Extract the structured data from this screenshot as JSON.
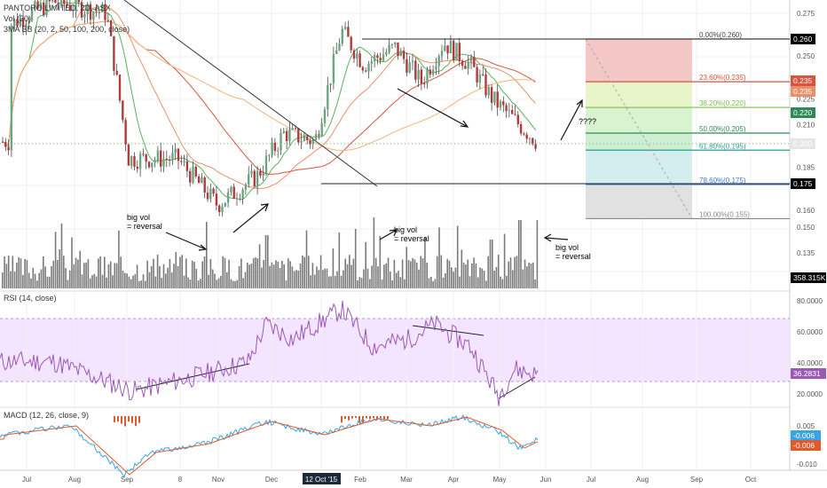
{
  "legend": {
    "symbol": "PANTORO LIMITED, 2D, ASX",
    "vol": "Vol (20)",
    "bb": "3MA BB (20, 2, 50, 100, 200, close)",
    "rsi": "RSI (14, close)",
    "macd": "MACD (12, 26, close, 9)"
  },
  "colors": {
    "up": "#6ba583",
    "down": "#b33b3b",
    "ma20": "#5bb15b",
    "ma50": "#e8906a",
    "ma100": "#d9533f",
    "ma200": "#f7b27a",
    "rsi_line": "#9b59b6",
    "rsi_band": "#f3e5ff",
    "macd_line": "#3aa3e3",
    "signal_line": "#e05a2b",
    "hist_neg": "#e05a2b",
    "hist_pos": "#3aa3e3",
    "vol_bar": "#7a7a7a"
  },
  "chart_data": [
    {
      "type": "candlestick",
      "name": "price",
      "xlabel": "",
      "ylabel": "",
      "ylim": [
        0.125,
        0.28
      ],
      "y_ticks": [
        0.275,
        0.25,
        0.225,
        0.21,
        0.185,
        0.16,
        0.15,
        0.135
      ],
      "x_ticks": [
        "Jul",
        "Aug",
        "Sep",
        "8",
        "Nov",
        "Dec",
        "12 Oct '15",
        "Feb",
        "Mar",
        "Apr",
        "May",
        "Jun",
        "Jul",
        "Aug",
        "Sep",
        "Oct"
      ],
      "highlighted_x_tick": "12 Oct '15",
      "price_tags": [
        {
          "value": "0.260",
          "bg": "#000000"
        },
        {
          "value": "0.235",
          "bg": "#d9533f"
        },
        {
          "value": "0.235",
          "bg": "#e8906a"
        },
        {
          "value": "0.220",
          "bg": "#2e8b57"
        },
        {
          "value": "0.200",
          "bg": "#e6e6e6",
          "fg": "#333333"
        },
        {
          "value": "0.175",
          "bg": "#000000"
        },
        {
          "value": "358.315K",
          "bg": "#000000"
        }
      ],
      "fibonacci": [
        {
          "label": "0.00%(0.260)",
          "value": 0.26
        },
        {
          "label": "23.60%(0.235)",
          "value": 0.235
        },
        {
          "label": "38.20%(0.220)",
          "value": 0.22
        },
        {
          "label": "50.00%(0.205)",
          "value": 0.205
        },
        {
          "label": "61.80%(0.195)",
          "value": 0.195
        },
        {
          "label": "78.60%(0.175)",
          "value": 0.175
        },
        {
          "label": "100.00%(0.155)",
          "value": 0.155
        }
      ],
      "annotations": [
        "big vol\n= reversal",
        "big vol\n= reversal",
        "big vol\n= reversal",
        "????"
      ]
    },
    {
      "type": "line",
      "name": "RSI",
      "ylim": [
        15,
        85
      ],
      "y_ticks": [
        "80.0000",
        "60.0000",
        "40.0000",
        "20.0000"
      ],
      "band": [
        30,
        70
      ],
      "last_value": "36.2831"
    },
    {
      "type": "line",
      "name": "MACD",
      "y_ticks": [
        "0.005",
        "-0.006",
        "-0.006",
        "-0.010"
      ],
      "last_values": [
        "-0.006",
        "-0.006"
      ]
    }
  ]
}
